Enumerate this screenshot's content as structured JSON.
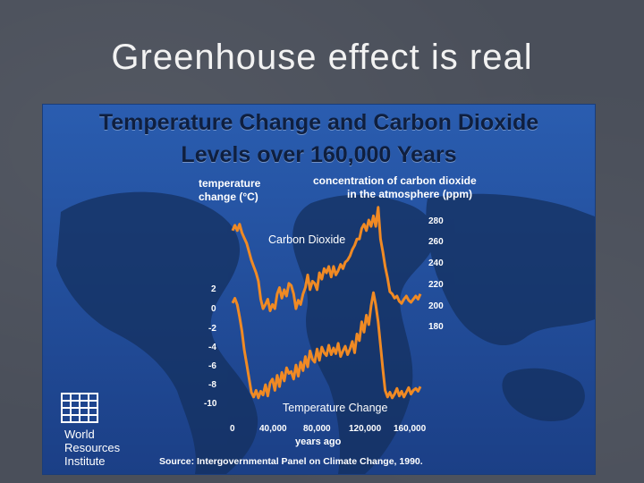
{
  "slide": {
    "title": "Greenhouse effect is real"
  },
  "chart_data": {
    "type": "line",
    "title": "Temperature Change and Carbon Dioxide",
    "subtitle": "Levels over 160,000 Years",
    "x_label": "years ago",
    "x_ticks": [
      "0",
      "40,000",
      "80,000",
      "120,000",
      "160,000"
    ],
    "x_range": [
      0,
      160000
    ],
    "left_axis": {
      "label_line1": "temperature",
      "label_line2": "change (°C)",
      "ticks": [
        "2",
        "0",
        "-2",
        "-4",
        "-6",
        "-8",
        "-10"
      ],
      "range": [
        -10,
        2
      ]
    },
    "right_axis": {
      "label_line1": "concentration of carbon dioxide",
      "label_line2": "in the atmosphere (ppm)",
      "ticks": [
        "280",
        "260",
        "240",
        "220",
        "200",
        "180"
      ],
      "range": [
        180,
        280
      ]
    },
    "series": [
      {
        "name": "Carbon Dioxide",
        "axis": "right",
        "color": "#f08a24",
        "x": [
          0,
          2000,
          4000,
          6000,
          8000,
          10000,
          12000,
          14000,
          16000,
          18000,
          20000,
          22000,
          24000,
          26000,
          28000,
          30000,
          32000,
          34000,
          36000,
          38000,
          40000,
          42000,
          44000,
          46000,
          48000,
          50000,
          52000,
          54000,
          56000,
          58000,
          60000,
          62000,
          64000,
          66000,
          68000,
          70000,
          72000,
          74000,
          76000,
          78000,
          80000,
          82000,
          84000,
          86000,
          88000,
          90000,
          92000,
          94000,
          96000,
          98000,
          100000,
          102000,
          104000,
          106000,
          108000,
          110000,
          112000,
          114000,
          116000,
          118000,
          120000,
          122000,
          124000,
          126000,
          128000,
          130000,
          132000,
          134000,
          136000,
          138000,
          140000,
          142000,
          144000,
          146000,
          148000,
          150000,
          152000,
          154000,
          156000,
          158000,
          160000
        ],
        "values": [
          270,
          275,
          270,
          276,
          268,
          263,
          258,
          250,
          242,
          236,
          230,
          222,
          205,
          196,
          200,
          205,
          194,
          200,
          196,
          210,
          216,
          206,
          214,
          208,
          220,
          218,
          210,
          196,
          204,
          200,
          210,
          216,
          228,
          214,
          222,
          220,
          214,
          230,
          224,
          234,
          230,
          236,
          226,
          236,
          228,
          232,
          238,
          234,
          240,
          242,
          246,
          252,
          256,
          262,
          262,
          272,
          276,
          270,
          280,
          274,
          284,
          274,
          292,
          262,
          250,
          236,
          225,
          212,
          210,
          206,
          208,
          203,
          201,
          205,
          208,
          204,
          202,
          205,
          208,
          205,
          210
        ]
      },
      {
        "name": "Temperature Change",
        "axis": "left",
        "color": "#f08a24",
        "x": [
          0,
          2000,
          4000,
          6000,
          8000,
          10000,
          12000,
          14000,
          16000,
          18000,
          20000,
          22000,
          24000,
          26000,
          28000,
          30000,
          32000,
          34000,
          36000,
          38000,
          40000,
          42000,
          44000,
          46000,
          48000,
          50000,
          52000,
          54000,
          56000,
          58000,
          60000,
          62000,
          64000,
          66000,
          68000,
          70000,
          72000,
          74000,
          76000,
          78000,
          80000,
          82000,
          84000,
          86000,
          88000,
          90000,
          92000,
          94000,
          96000,
          98000,
          100000,
          102000,
          104000,
          106000,
          108000,
          110000,
          112000,
          114000,
          116000,
          118000,
          120000,
          122000,
          124000,
          126000,
          128000,
          130000,
          132000,
          134000,
          136000,
          138000,
          140000,
          142000,
          144000,
          146000,
          148000,
          150000,
          152000,
          154000,
          156000,
          158000,
          160000
        ],
        "values": [
          0.5,
          1.0,
          0.3,
          -1.0,
          -2.5,
          -4.5,
          -6.0,
          -7.5,
          -9.0,
          -9.5,
          -8.8,
          -9.6,
          -8.9,
          -9.3,
          -8.2,
          -9.4,
          -8.0,
          -7.6,
          -8.8,
          -7.2,
          -8.4,
          -6.9,
          -7.8,
          -6.4,
          -7.0,
          -6.8,
          -7.6,
          -6.1,
          -7.3,
          -5.8,
          -6.7,
          -5.2,
          -6.3,
          -4.6,
          -5.5,
          -5.8,
          -4.4,
          -5.6,
          -4.2,
          -4.8,
          -5.1,
          -4.0,
          -5.0,
          -4.3,
          -4.9,
          -3.8,
          -5.2,
          -4.6,
          -4.1,
          -5.0,
          -4.4,
          -3.6,
          -4.8,
          -2.8,
          -3.5,
          -1.5,
          -2.6,
          -0.8,
          -1.8,
          0.2,
          1.6,
          0.3,
          -1.5,
          -4.0,
          -6.5,
          -8.8,
          -9.5,
          -9.0,
          -9.6,
          -9.2,
          -8.6,
          -9.4,
          -8.9,
          -9.5,
          -9.0,
          -8.5,
          -9.2,
          -8.8,
          -8.6,
          -8.9,
          -8.4
        ]
      }
    ],
    "annotations": [
      "Carbon Dioxide",
      "Temperature Change"
    ],
    "grid": false,
    "legend": "none"
  },
  "attribution": {
    "org_line1": "World",
    "org_line2": "Resources",
    "org_line3": "Institute",
    "source": "Source: Intergovernmental Panel on Climate Change, 1990."
  }
}
